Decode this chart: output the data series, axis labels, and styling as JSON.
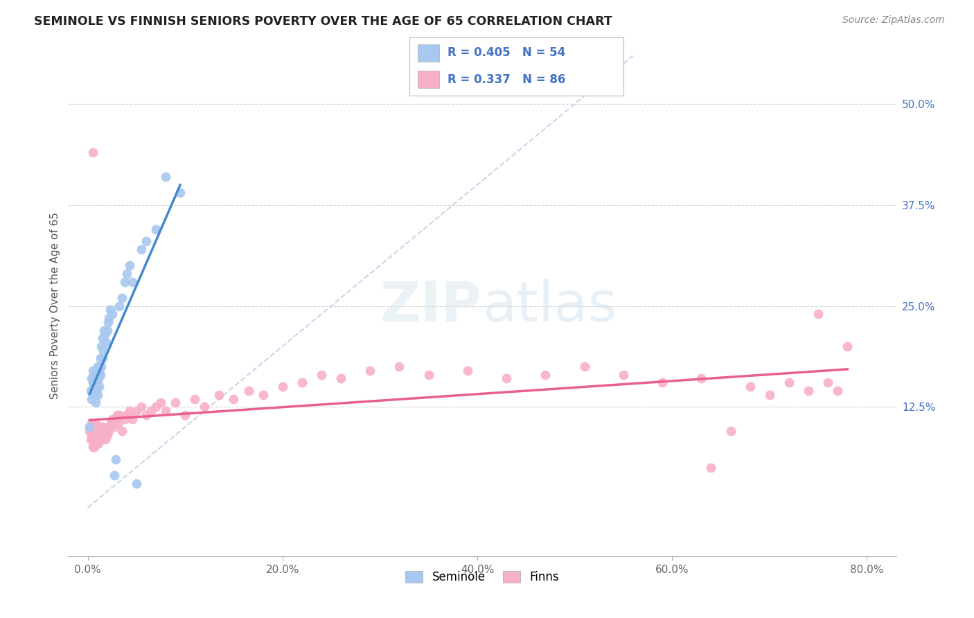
{
  "title": "SEMINOLE VS FINNISH SENIORS POVERTY OVER THE AGE OF 65 CORRELATION CHART",
  "source": "Source: ZipAtlas.com",
  "ylabel": "Seniors Poverty Over the Age of 65",
  "xlabel_ticks": [
    "0.0%",
    "20.0%",
    "40.0%",
    "60.0%",
    "80.0%"
  ],
  "xlabel_vals": [
    0.0,
    0.2,
    0.4,
    0.6,
    0.8
  ],
  "ylabel_ticks": [
    "12.5%",
    "25.0%",
    "37.5%",
    "50.0%"
  ],
  "ylabel_vals": [
    0.125,
    0.25,
    0.375,
    0.5
  ],
  "xlim": [
    -0.02,
    0.83
  ],
  "ylim": [
    -0.06,
    0.56
  ],
  "seminole_R": 0.405,
  "seminole_N": 54,
  "finns_R": 0.337,
  "finns_N": 86,
  "background_color": "#ffffff",
  "grid_color": "#c8c8c8",
  "seminole_color": "#a8c8f0",
  "seminole_line_color": "#4488cc",
  "finns_color": "#f8b0c8",
  "finns_line_color": "#e86090",
  "diagonal_color": "#b8cce4",
  "seminole_x": [
    0.002,
    0.003,
    0.004,
    0.004,
    0.005,
    0.005,
    0.005,
    0.006,
    0.006,
    0.006,
    0.007,
    0.007,
    0.008,
    0.008,
    0.008,
    0.009,
    0.009,
    0.009,
    0.01,
    0.01,
    0.01,
    0.011,
    0.011,
    0.012,
    0.012,
    0.013,
    0.013,
    0.014,
    0.014,
    0.015,
    0.015,
    0.016,
    0.017,
    0.018,
    0.019,
    0.02,
    0.021,
    0.022,
    0.023,
    0.025,
    0.027,
    0.029,
    0.032,
    0.035,
    0.038,
    0.04,
    0.043,
    0.046,
    0.05,
    0.055,
    0.06,
    0.07,
    0.08,
    0.095
  ],
  "seminole_y": [
    0.1,
    0.145,
    0.135,
    0.16,
    0.14,
    0.155,
    0.17,
    0.14,
    0.15,
    0.165,
    0.155,
    0.165,
    0.13,
    0.15,
    0.165,
    0.145,
    0.155,
    0.17,
    0.14,
    0.155,
    0.175,
    0.16,
    0.175,
    0.15,
    0.17,
    0.165,
    0.185,
    0.175,
    0.2,
    0.185,
    0.21,
    0.195,
    0.22,
    0.215,
    0.205,
    0.22,
    0.23,
    0.235,
    0.245,
    0.24,
    0.04,
    0.06,
    0.25,
    0.26,
    0.28,
    0.29,
    0.3,
    0.28,
    0.03,
    0.32,
    0.33,
    0.345,
    0.41,
    0.39
  ],
  "finns_x": [
    0.002,
    0.003,
    0.003,
    0.004,
    0.004,
    0.005,
    0.005,
    0.005,
    0.006,
    0.006,
    0.007,
    0.007,
    0.008,
    0.008,
    0.009,
    0.009,
    0.01,
    0.01,
    0.011,
    0.011,
    0.012,
    0.012,
    0.013,
    0.013,
    0.014,
    0.015,
    0.015,
    0.016,
    0.017,
    0.018,
    0.019,
    0.02,
    0.021,
    0.022,
    0.024,
    0.025,
    0.027,
    0.029,
    0.031,
    0.033,
    0.035,
    0.038,
    0.04,
    0.043,
    0.046,
    0.05,
    0.055,
    0.06,
    0.065,
    0.07,
    0.075,
    0.08,
    0.09,
    0.1,
    0.11,
    0.12,
    0.135,
    0.15,
    0.165,
    0.18,
    0.2,
    0.22,
    0.24,
    0.26,
    0.29,
    0.32,
    0.35,
    0.39,
    0.43,
    0.47,
    0.51,
    0.55,
    0.59,
    0.63,
    0.64,
    0.66,
    0.68,
    0.7,
    0.72,
    0.74,
    0.75,
    0.76,
    0.77,
    0.78,
    0.005,
    0.03
  ],
  "finns_y": [
    0.095,
    0.1,
    0.085,
    0.09,
    0.105,
    0.075,
    0.085,
    0.095,
    0.08,
    0.09,
    0.075,
    0.085,
    0.095,
    0.105,
    0.08,
    0.09,
    0.085,
    0.095,
    0.08,
    0.095,
    0.09,
    0.1,
    0.085,
    0.095,
    0.1,
    0.09,
    0.1,
    0.095,
    0.09,
    0.085,
    0.095,
    0.09,
    0.1,
    0.095,
    0.105,
    0.11,
    0.1,
    0.11,
    0.105,
    0.115,
    0.095,
    0.11,
    0.115,
    0.12,
    0.11,
    0.12,
    0.125,
    0.115,
    0.12,
    0.125,
    0.13,
    0.12,
    0.13,
    0.115,
    0.135,
    0.125,
    0.14,
    0.135,
    0.145,
    0.14,
    0.15,
    0.155,
    0.165,
    0.16,
    0.17,
    0.175,
    0.165,
    0.17,
    0.16,
    0.165,
    0.175,
    0.165,
    0.155,
    0.16,
    0.05,
    0.095,
    0.15,
    0.14,
    0.155,
    0.145,
    0.24,
    0.155,
    0.145,
    0.2,
    0.44,
    0.115
  ]
}
